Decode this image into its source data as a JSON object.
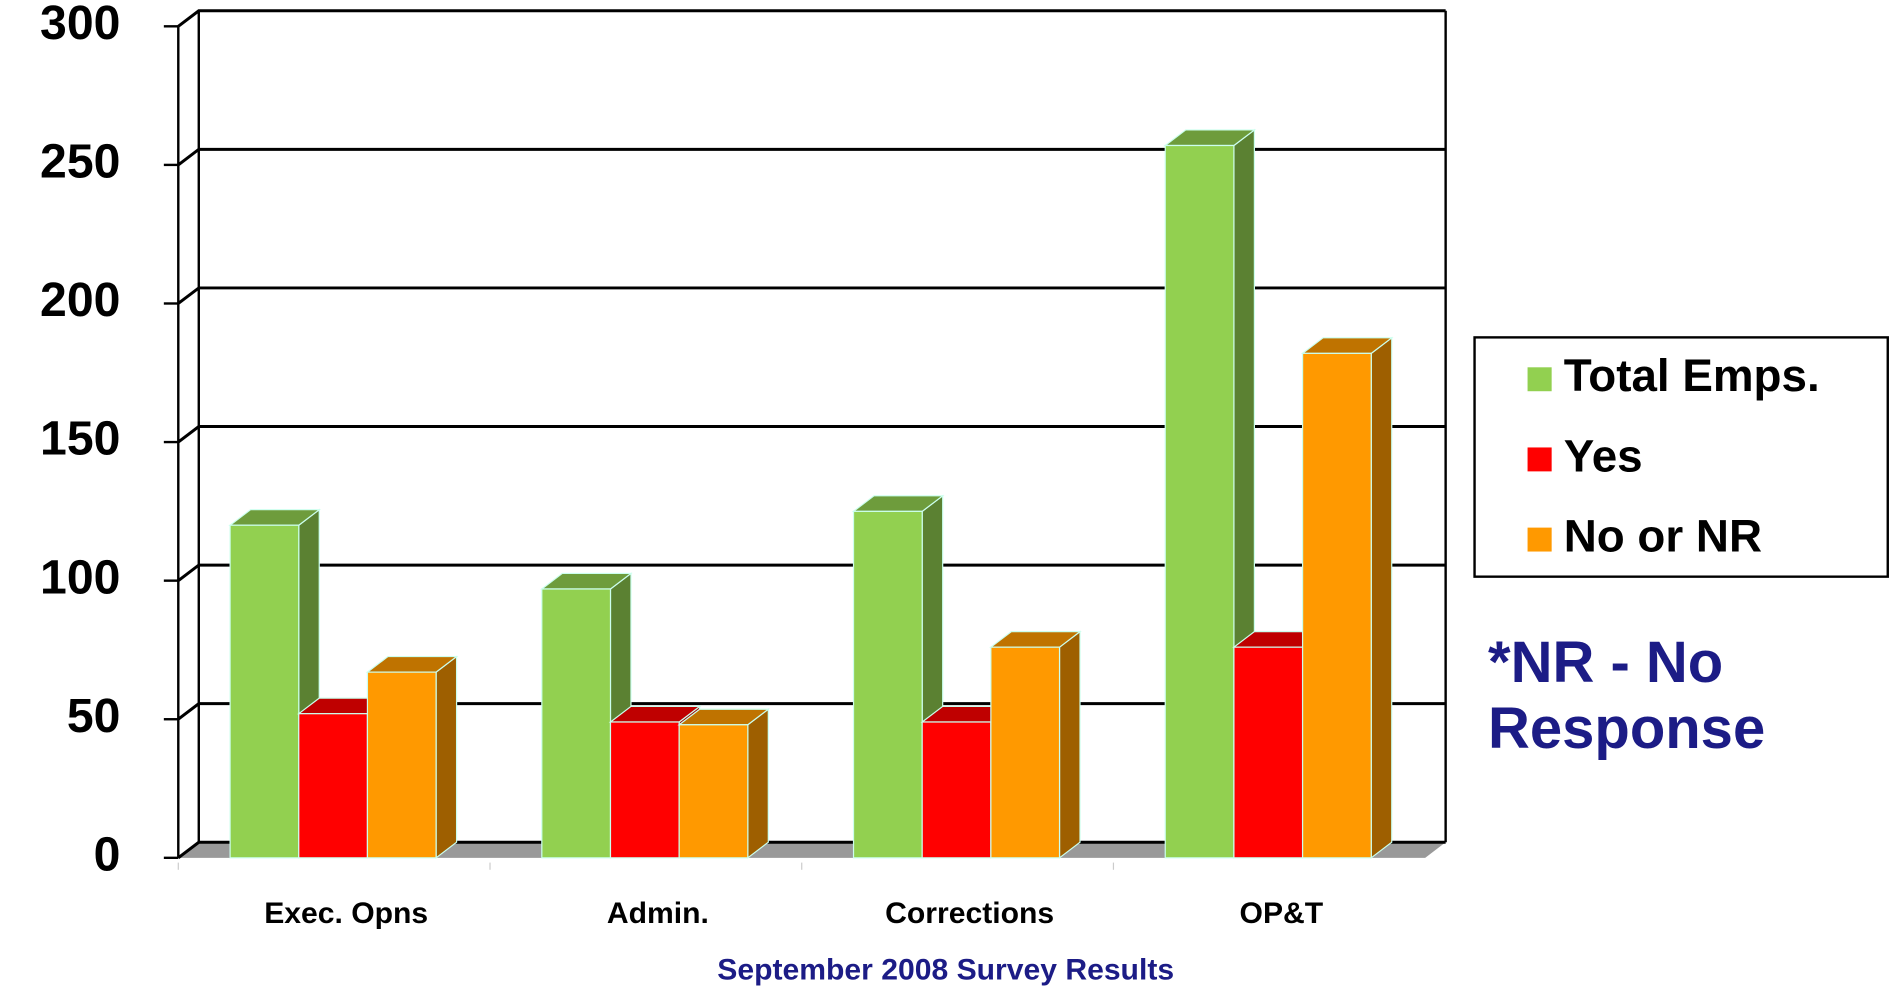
{
  "chart_data": {
    "type": "bar3d",
    "x_label": "September 2008 Survey Results",
    "categories": [
      "Exec. Opns",
      "Admin.",
      "Corrections",
      "OP&T"
    ],
    "series": [
      {
        "name": "Total Emps.",
        "color": "#92d050",
        "values": [
          120,
          97,
          125,
          257
        ]
      },
      {
        "name": "Yes",
        "color": "#ff0000",
        "values": [
          52,
          49,
          49,
          76
        ]
      },
      {
        "name": "No or NR",
        "color": "#ff9900",
        "values": [
          67,
          48,
          76,
          182
        ]
      }
    ],
    "ylim": [
      0,
      300
    ],
    "yticks": [
      0,
      50,
      100,
      150,
      200,
      250,
      300
    ],
    "grid": true,
    "legend": "right",
    "note": "*NR - No Response"
  }
}
